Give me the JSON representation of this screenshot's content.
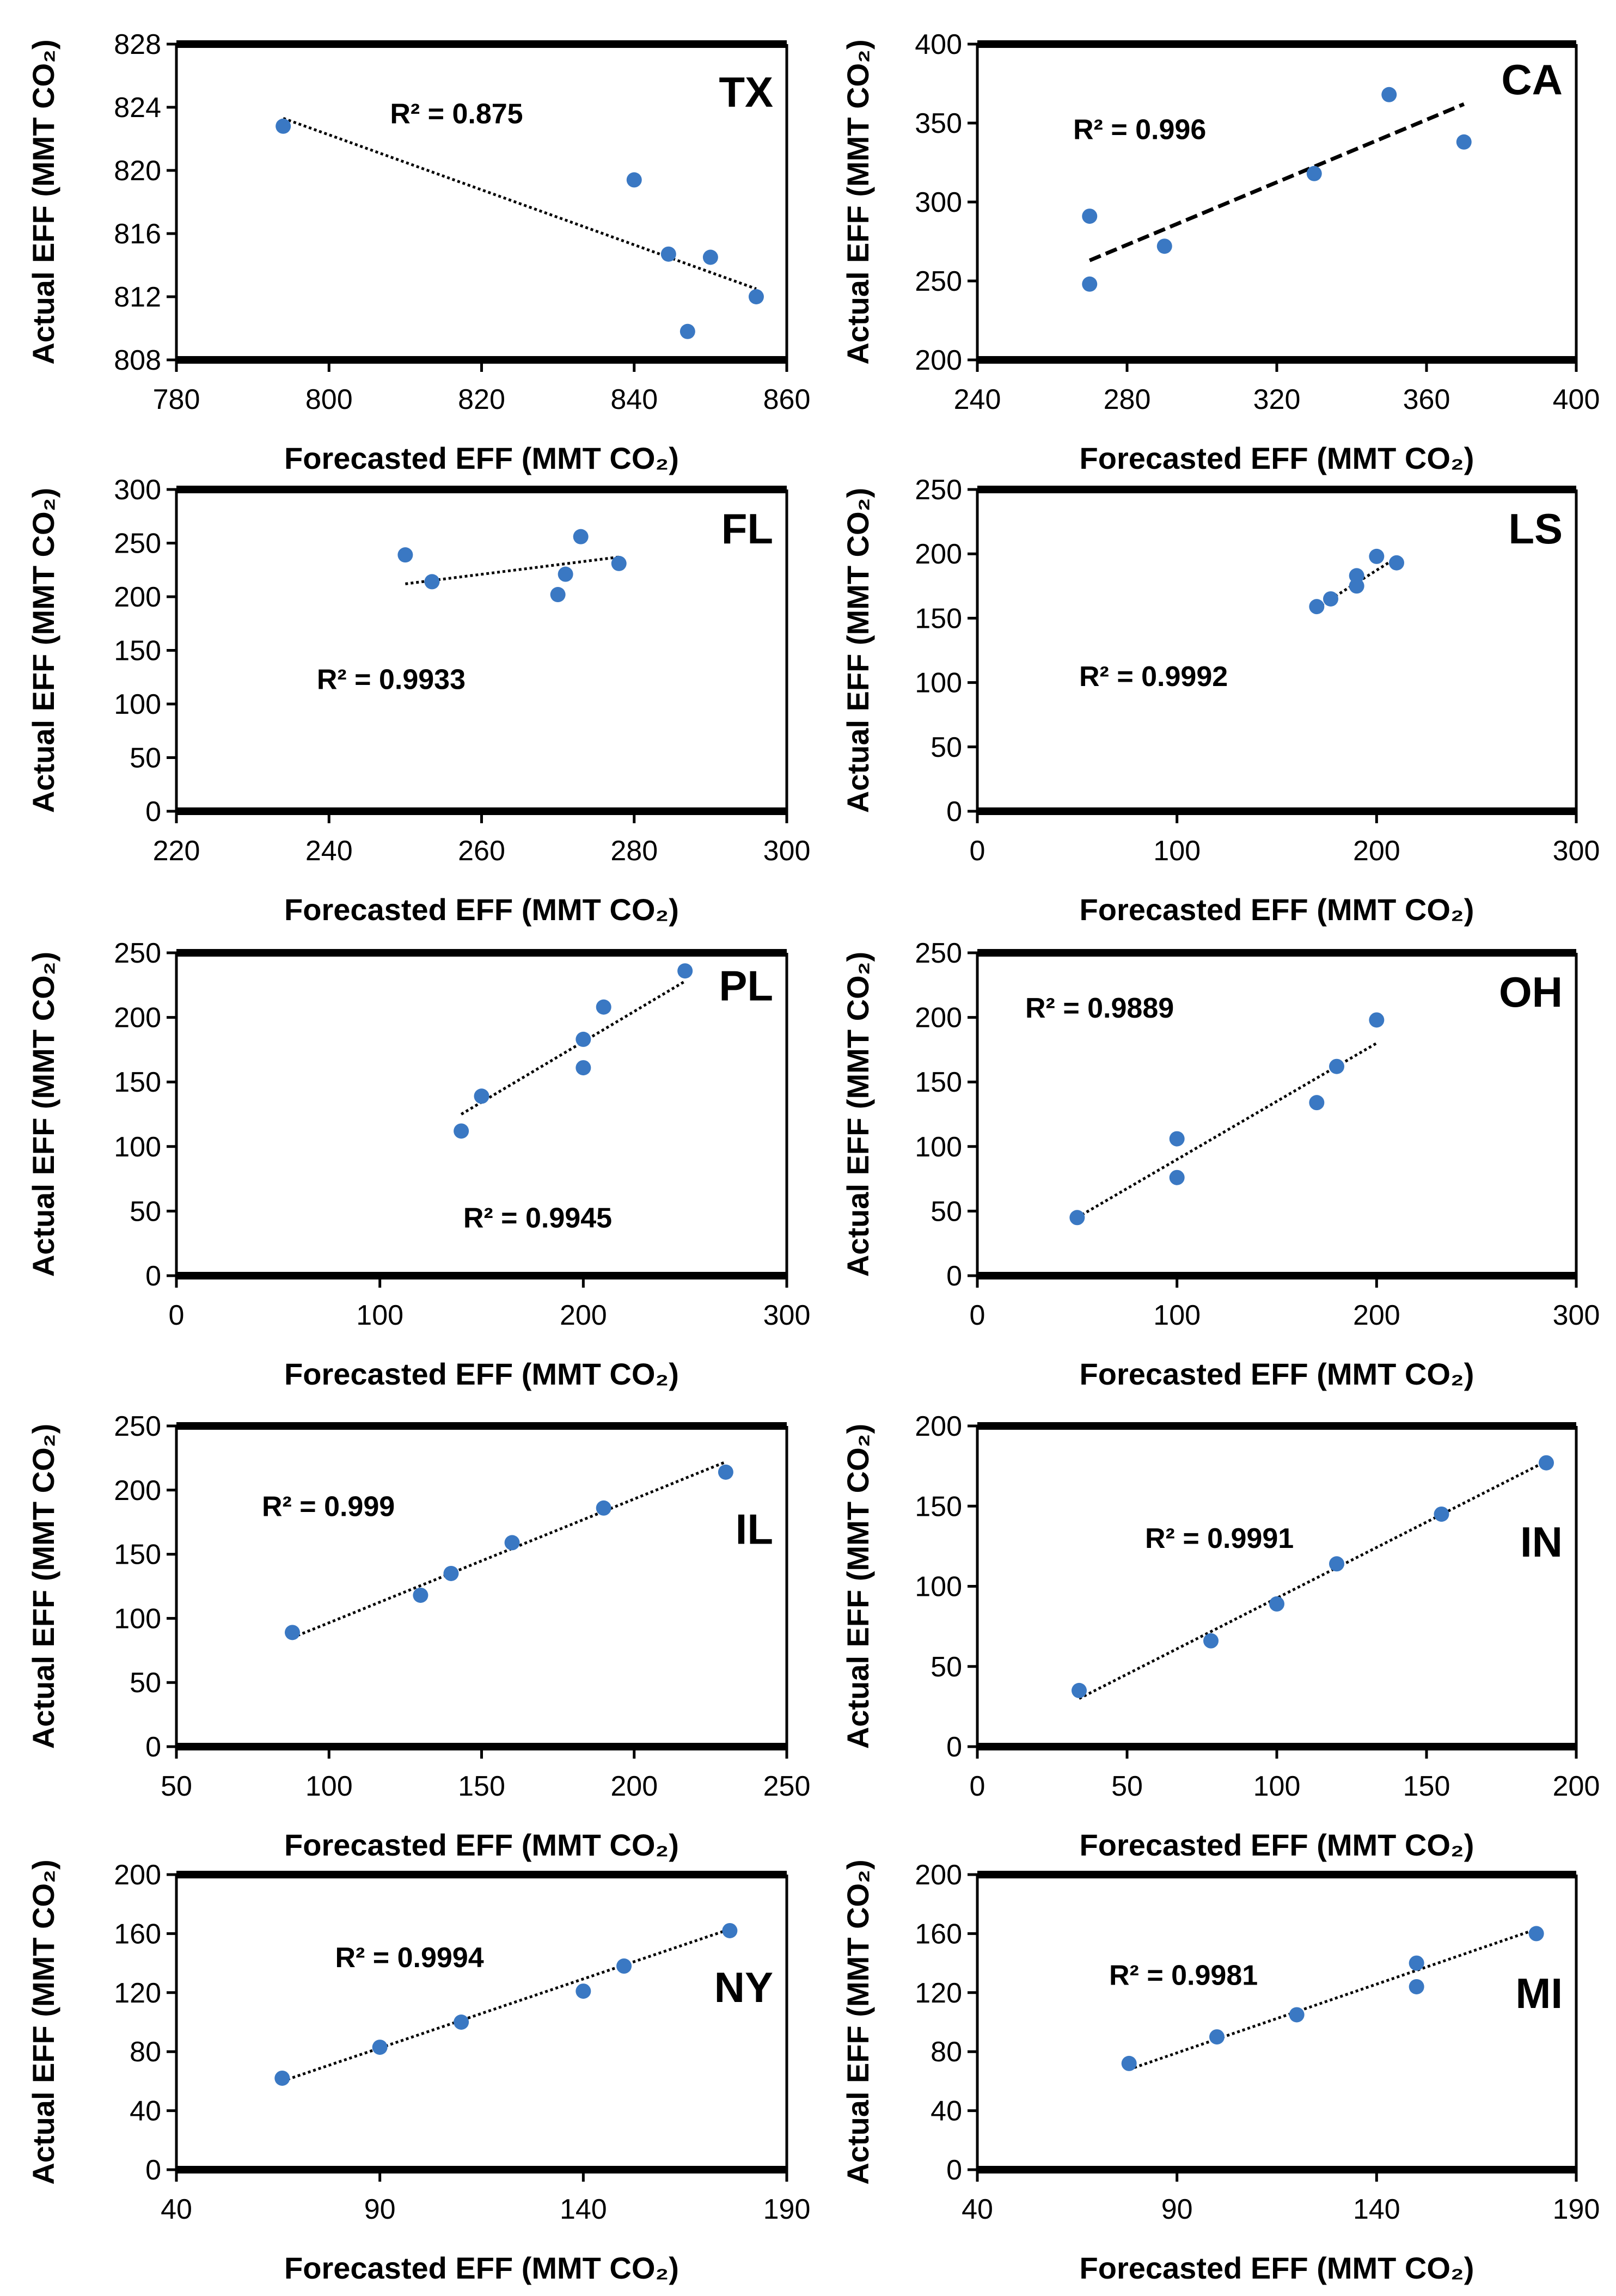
{
  "colors": {
    "point": "#3a78c3",
    "axis": "#000000",
    "trend": "#000000"
  },
  "chart_data": [
    {
      "type": "scatter",
      "state": "TX",
      "r2_label": "R² = 0.875",
      "xlabel": "Forecasted EFF (MMT CO₂)",
      "ylabel": "Actual EFF (MMT CO₂)",
      "xlim": [
        780,
        860
      ],
      "xticks": [
        780,
        800,
        820,
        840,
        860
      ],
      "ylim": [
        808,
        828
      ],
      "yticks": [
        808,
        812,
        816,
        820,
        824,
        828
      ],
      "x": [
        794,
        840,
        844.5,
        850,
        847,
        856
      ],
      "y": [
        822.8,
        819.4,
        814.7,
        814.5,
        809.8,
        812.0
      ],
      "trendline": {
        "x": [
          794,
          856
        ],
        "y": [
          823.3,
          812.5
        ],
        "style": "dotted"
      }
    },
    {
      "type": "scatter",
      "state": "CA",
      "r2_label": "R² = 0.996",
      "xlabel": "Forecasted EFF (MMT CO₂)",
      "ylabel": "Actual EFF (MMT CO₂)",
      "xlim": [
        240,
        400
      ],
      "xticks": [
        240,
        280,
        320,
        360,
        400
      ],
      "ylim": [
        200,
        400
      ],
      "yticks": [
        200,
        250,
        300,
        350,
        400
      ],
      "x": [
        270,
        270,
        290,
        330,
        350,
        370
      ],
      "y": [
        291,
        248,
        272,
        318,
        368,
        338
      ],
      "trendline": {
        "x": [
          270,
          370
        ],
        "y": [
          263,
          362
        ],
        "style": "dashed"
      }
    },
    {
      "type": "scatter",
      "state": "FL",
      "r2_label": "R² = 0.9933",
      "xlabel": "Forecasted EFF (MMT CO₂)",
      "ylabel": "Actual EFF (MMT CO₂)",
      "xlim": [
        220,
        300
      ],
      "xticks": [
        220,
        240,
        260,
        280,
        300
      ],
      "ylim": [
        0,
        300
      ],
      "yticks": [
        0,
        50,
        100,
        150,
        200,
        250,
        300
      ],
      "x": [
        250,
        253.5,
        270,
        271,
        273,
        278
      ],
      "y": [
        239,
        214,
        202,
        221,
        256,
        231
      ],
      "trendline": {
        "x": [
          250,
          278
        ],
        "y": [
          212,
          237
        ],
        "style": "dotted"
      }
    },
    {
      "type": "scatter",
      "state": "LS",
      "r2_label": "R² = 0.9992",
      "xlabel": "Forecasted EFF (MMT CO₂)",
      "ylabel": "Actual EFF (MMT CO₂)",
      "xlim": [
        0,
        300
      ],
      "xticks": [
        0,
        100,
        200,
        300
      ],
      "ylim": [
        0,
        250
      ],
      "yticks": [
        0,
        50,
        100,
        150,
        200,
        250
      ],
      "x": [
        170,
        177,
        190,
        190,
        200,
        210
      ],
      "y": [
        159,
        165,
        183,
        175,
        198,
        193
      ],
      "trendline": {
        "x": [
          170,
          210
        ],
        "y": [
          158,
          197
        ],
        "style": "dotted"
      }
    },
    {
      "type": "scatter",
      "state": "PL",
      "r2_label": "R² = 0.9945",
      "xlabel": "Forecasted EFF (MMT CO₂)",
      "ylabel": "Actual EFF (MMT CO₂)",
      "xlim": [
        0,
        300
      ],
      "xticks": [
        0,
        100,
        200,
        300
      ],
      "ylim": [
        0,
        250
      ],
      "yticks": [
        0,
        50,
        100,
        150,
        200,
        250
      ],
      "x": [
        140,
        150,
        200,
        200,
        210,
        250
      ],
      "y": [
        112,
        139,
        183,
        161,
        208,
        236
      ],
      "trendline": {
        "x": [
          140,
          250
        ],
        "y": [
          125,
          228
        ],
        "style": "dotted"
      }
    },
    {
      "type": "scatter",
      "state": "OH",
      "r2_label": "R² = 0.9889",
      "xlabel": "Forecasted EFF (MMT CO₂)",
      "ylabel": "Actual EFF (MMT CO₂)",
      "xlim": [
        0,
        300
      ],
      "xticks": [
        0,
        100,
        200,
        300
      ],
      "ylim": [
        0,
        250
      ],
      "yticks": [
        0,
        50,
        100,
        150,
        200,
        250
      ],
      "x": [
        50,
        100,
        100,
        170,
        180,
        200
      ],
      "y": [
        45,
        106,
        76,
        134,
        162,
        198
      ],
      "trendline": {
        "x": [
          50,
          200
        ],
        "y": [
          45,
          180
        ],
        "style": "dotted"
      }
    },
    {
      "type": "scatter",
      "state": "IL",
      "r2_label": "R² = 0.999",
      "xlabel": "Forecasted EFF (MMT CO₂)",
      "ylabel": "Actual EFF (MMT CO₂)",
      "xlim": [
        50,
        250
      ],
      "xticks": [
        50,
        100,
        150,
        200,
        250
      ],
      "ylim": [
        0,
        250
      ],
      "yticks": [
        0,
        50,
        100,
        150,
        200,
        250
      ],
      "x": [
        88,
        130,
        140,
        160,
        190,
        230
      ],
      "y": [
        89,
        118,
        135,
        159,
        186,
        214
      ],
      "trendline": {
        "x": [
          88,
          230
        ],
        "y": [
          85,
          222
        ],
        "style": "dotted"
      }
    },
    {
      "type": "scatter",
      "state": "IN",
      "r2_label": "R² = 0.9991",
      "xlabel": "Forecasted EFF (MMT CO₂)",
      "ylabel": "Actual EFF (MMT CO₂)",
      "xlim": [
        0,
        200
      ],
      "xticks": [
        0,
        50,
        100,
        150,
        200
      ],
      "ylim": [
        0,
        200
      ],
      "yticks": [
        0,
        50,
        100,
        150,
        200
      ],
      "x": [
        34,
        78,
        100,
        120,
        155,
        190
      ],
      "y": [
        35,
        66,
        89,
        114,
        145,
        177
      ],
      "trendline": {
        "x": [
          34,
          190
        ],
        "y": [
          30,
          178
        ],
        "style": "dotted"
      }
    },
    {
      "type": "scatter",
      "state": "NY",
      "r2_label": "R² = 0.9994",
      "xlabel": "Forecasted EFF (MMT CO₂)",
      "ylabel": "Actual EFF (MMT CO₂)",
      "xlim": [
        40,
        190
      ],
      "xticks": [
        40,
        90,
        140,
        190
      ],
      "ylim": [
        0,
        200
      ],
      "yticks": [
        0,
        40,
        80,
        120,
        160,
        200
      ],
      "x": [
        66,
        90,
        110,
        140,
        150,
        176
      ],
      "y": [
        62,
        83,
        100,
        121,
        138,
        162
      ],
      "trendline": {
        "x": [
          66,
          176
        ],
        "y": [
          60,
          163
        ],
        "style": "dotted"
      }
    },
    {
      "type": "scatter",
      "state": "MI",
      "r2_label": "R² = 0.9981",
      "xlabel": "Forecasted EFF (MMT CO₂)",
      "ylabel": "Actual EFF (MMT CO₂)",
      "xlim": [
        40,
        190
      ],
      "xticks": [
        40,
        90,
        140,
        190
      ],
      "ylim": [
        0,
        200
      ],
      "yticks": [
        0,
        40,
        80,
        120,
        160,
        200
      ],
      "x": [
        78,
        100,
        120,
        150,
        150,
        180
      ],
      "y": [
        72,
        90,
        105,
        140,
        124,
        160
      ],
      "trendline": {
        "x": [
          78,
          180
        ],
        "y": [
          68,
          163
        ],
        "style": "dotted"
      }
    }
  ]
}
